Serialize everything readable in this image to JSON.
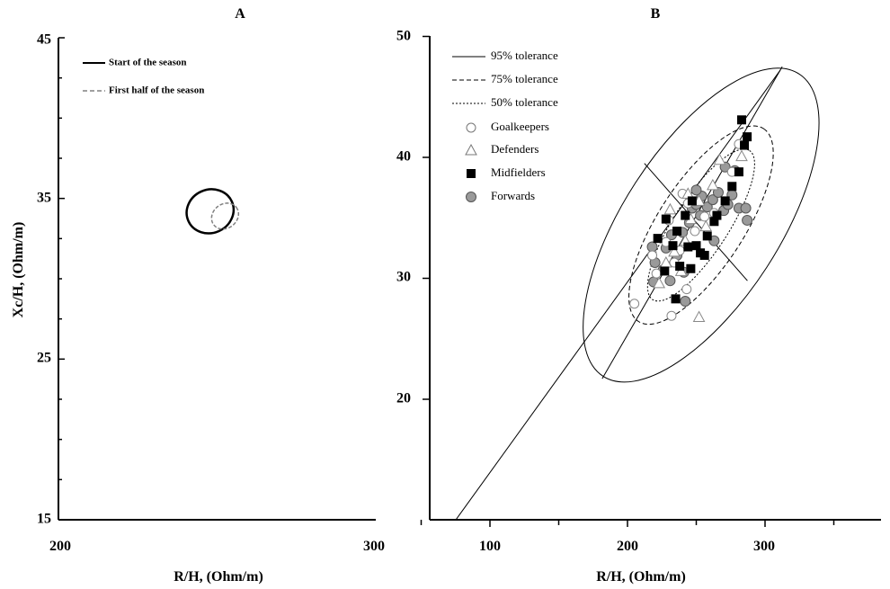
{
  "chart_data": [
    {
      "type": "scatter",
      "panel": "A",
      "xlabel": "R/H, (Ohm/m)",
      "ylabel": "Xc/H, (Ohm/m)",
      "xlim": [
        200,
        300
      ],
      "ylim": [
        15,
        45
      ],
      "x_ticks": [
        "200",
        "300"
      ],
      "y_ticks": [
        "15",
        "25",
        "35",
        "45"
      ],
      "legend_position": "top-left",
      "series": [
        {
          "name": "Start of the season",
          "line_style": "solid",
          "color": "#000000",
          "ellipse": {
            "center": [
              247.8,
              34.2
            ],
            "half_width": 7.5,
            "half_height": 1.35,
            "angle_deg": -24
          }
        },
        {
          "name": "First half of the season",
          "line_style": "dashed",
          "color": "#808080",
          "ellipse": {
            "center": [
              252.5,
              33.9
            ],
            "half_width": 4.5,
            "half_height": 0.75,
            "angle_deg": -38
          }
        }
      ]
    },
    {
      "type": "scatter",
      "panel": "B",
      "xlabel": "R/H, (Ohm/m)",
      "ylabel": "",
      "xlim": [
        55,
        380
      ],
      "ylim": [
        10,
        50
      ],
      "x_ticks": [
        "100",
        "200",
        "300"
      ],
      "y_ticks": [
        "20",
        "30",
        "40",
        "50"
      ],
      "legend_position": "top-left",
      "major_axis_line": {
        "from": [
          75,
          10
        ],
        "to": [
          311,
          47.2
        ]
      },
      "tolerance_ellipses": {
        "center": [
          253.5,
          34.4
        ],
        "angle_deg": 57,
        "ellipses": [
          {
            "name": "95% tolerance",
            "line_style": "solid",
            "major_axis": [
              [
                181.6,
                21.7
              ],
              [
                312.5,
                47.5
              ]
            ],
            "minor_axis": [
              [
                212.3,
                39.5
              ],
              [
                287.2,
                29.8
              ]
            ]
          },
          {
            "name": "75% tolerance",
            "line_style": "dashed",
            "major_axis": [
              [
                206.6,
                26.5
              ],
              [
                292.5,
                42.8
              ]
            ],
            "minor_axis": [
              [
                230.2,
                36.8
              ],
              [
                272.6,
                31.6
              ]
            ]
          },
          {
            "name": "50% tolerance",
            "line_style": "dotted",
            "major_axis": [
              [
                218.5,
                28.6
              ],
              [
                282,
                41.4
              ]
            ],
            "minor_axis": [
              [
                239,
                36
              ],
              [
                265,
                32.6
              ]
            ]
          }
        ]
      },
      "series": [
        {
          "name": "Goalkeepers",
          "marker": "circle-open",
          "points": [
            [
              205,
              27.9
            ],
            [
              232,
              26.9
            ],
            [
              243,
              29.1
            ],
            [
              218,
              31.9
            ],
            [
              228,
              33
            ],
            [
              238,
              32.3
            ],
            [
              230,
              34.8
            ],
            [
              240,
              37
            ],
            [
              256,
              35.1
            ],
            [
              263,
              35.4
            ],
            [
              276,
              38.8
            ],
            [
              281,
              41.1
            ],
            [
              221,
              30.4
            ],
            [
              249,
              33.9
            ],
            [
              234,
              31.3
            ],
            [
              244,
              36.2
            ]
          ]
        },
        {
          "name": "Defenders",
          "marker": "triangle-open",
          "points": [
            [
              252,
              26.8
            ],
            [
              223,
              29.6
            ],
            [
              228,
              31.3
            ],
            [
              234,
              32.2
            ],
            [
              242,
              33.1
            ],
            [
              246,
              34.9
            ],
            [
              252,
              36.4
            ],
            [
              262,
              37.7
            ],
            [
              267,
              39.8
            ],
            [
              283,
              40.1
            ],
            [
              244,
              37
            ],
            [
              239,
              30.6
            ],
            [
              231,
              35.7
            ],
            [
              257,
              34.3
            ]
          ]
        },
        {
          "name": "Midfielders",
          "marker": "square-filled",
          "points": [
            [
              235,
              28.3
            ],
            [
              227,
              30.6
            ],
            [
              222,
              33.3
            ],
            [
              228,
              34.9
            ],
            [
              233,
              32.7
            ],
            [
              238,
              31
            ],
            [
              244,
              32.6
            ],
            [
              246,
              30.8
            ],
            [
              242,
              35.2
            ],
            [
              250,
              32.7
            ],
            [
              253,
              32.1
            ],
            [
              258,
              33.5
            ],
            [
              263,
              34.7
            ],
            [
              265,
              35.2
            ],
            [
              271,
              36.4
            ],
            [
              276,
              37.6
            ],
            [
              281,
              38.8
            ],
            [
              285,
              41
            ],
            [
              287,
              41.7
            ],
            [
              283,
              43.1
            ],
            [
              256,
              31.9
            ],
            [
              247,
              36.4
            ],
            [
              236,
              33.9
            ]
          ]
        },
        {
          "name": "Forwards",
          "marker": "circle-filled",
          "points": [
            [
              219,
              29.7
            ],
            [
              220,
              31.3
            ],
            [
              218,
              32.6
            ],
            [
              226,
              30.7
            ],
            [
              228,
              32.5
            ],
            [
              232,
              33.6
            ],
            [
              236,
              31.9
            ],
            [
              241,
              30.5
            ],
            [
              240,
              33.8
            ],
            [
              245,
              34.6
            ],
            [
              247,
              35.8
            ],
            [
              250,
              36.1
            ],
            [
              254,
              36.8
            ],
            [
              253,
              35.2
            ],
            [
              258,
              35.9
            ],
            [
              262,
              36.5
            ],
            [
              266,
              37.1
            ],
            [
              270,
              35.6
            ],
            [
              273,
              36.1
            ],
            [
              276,
              36.9
            ],
            [
              281,
              35.8
            ],
            [
              286,
              35.8
            ],
            [
              287,
              34.8
            ],
            [
              271,
              39.2
            ],
            [
              278,
              38.9
            ],
            [
              242,
              28.1
            ],
            [
              263,
              33.1
            ],
            [
              250,
              37.3
            ],
            [
              231,
              29.8
            ]
          ]
        }
      ]
    }
  ]
}
